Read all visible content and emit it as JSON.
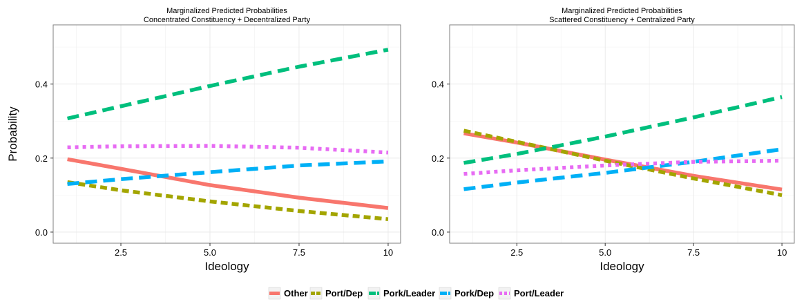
{
  "chart_data": [
    {
      "type": "line",
      "title": "Marginalized Predicted Probabilities",
      "subtitle": "Concentrated Constituency + Decentralized Party",
      "xlabel": "Ideology",
      "ylabel": "Probability",
      "xlim": [
        0.6,
        10.35
      ],
      "ylim": [
        -0.03,
        0.56
      ],
      "x_ticks": [
        2.5,
        5.0,
        7.5,
        10
      ],
      "x_tick_labels": [
        "2.5",
        "5.0",
        "7.5",
        "10"
      ],
      "y_ticks": [
        0.0,
        0.2,
        0.4
      ],
      "y_tick_labels": [
        "0.0",
        "0.2",
        "0.4"
      ],
      "grid": true,
      "series": [
        {
          "name": "Other",
          "color": "#F8766D",
          "style": "solid",
          "x": [
            1,
            2.5,
            5,
            7.5,
            10
          ],
          "values": [
            0.197,
            0.171,
            0.127,
            0.093,
            0.065
          ]
        },
        {
          "name": "Port/Dep",
          "color": "#A3A500",
          "style": "short-dash",
          "x": [
            1,
            2.5,
            5,
            7.5,
            10
          ],
          "values": [
            0.135,
            0.113,
            0.083,
            0.057,
            0.035
          ]
        },
        {
          "name": "Pork/Leader",
          "color": "#00BF7D",
          "style": "long-dash",
          "x": [
            1,
            2.5,
            5,
            7.5,
            10
          ],
          "values": [
            0.307,
            0.34,
            0.395,
            0.447,
            0.493
          ]
        },
        {
          "name": "Pork/Dep",
          "color": "#00B0F6",
          "style": "long-dash",
          "x": [
            1,
            2.5,
            5,
            7.5,
            10
          ],
          "values": [
            0.13,
            0.143,
            0.162,
            0.18,
            0.191
          ]
        },
        {
          "name": "Port/Leader",
          "color": "#E76BF3",
          "style": "dotted",
          "x": [
            1,
            2.5,
            5,
            7.5,
            10
          ],
          "values": [
            0.229,
            0.232,
            0.233,
            0.228,
            0.215
          ]
        }
      ]
    },
    {
      "type": "line",
      "title": "Marginalized Predicted Probabilities",
      "subtitle": "Scattered Constituency + Centralized Party",
      "xlabel": "Ideology",
      "ylabel": "",
      "xlim": [
        0.6,
        10.35
      ],
      "ylim": [
        -0.03,
        0.56
      ],
      "x_ticks": [
        2.5,
        5.0,
        7.5,
        10
      ],
      "x_tick_labels": [
        "2.5",
        "5.0",
        "7.5",
        "10"
      ],
      "y_ticks": [
        0.0,
        0.2,
        0.4
      ],
      "y_tick_labels": [
        "0.0",
        "0.2",
        "0.4"
      ],
      "grid": true,
      "series": [
        {
          "name": "Other",
          "color": "#F8766D",
          "style": "solid",
          "x": [
            1,
            2.5,
            5,
            7.5,
            10
          ],
          "values": [
            0.267,
            0.242,
            0.196,
            0.152,
            0.115
          ]
        },
        {
          "name": "Port/Dep",
          "color": "#A3A500",
          "style": "short-dash",
          "x": [
            1,
            2.5,
            5,
            7.5,
            10
          ],
          "values": [
            0.274,
            0.244,
            0.193,
            0.145,
            0.1
          ]
        },
        {
          "name": "Pork/Leader",
          "color": "#00BF7D",
          "style": "long-dash",
          "x": [
            1,
            2.5,
            5,
            7.5,
            10
          ],
          "values": [
            0.187,
            0.211,
            0.258,
            0.31,
            0.365
          ]
        },
        {
          "name": "Pork/Dep",
          "color": "#00B0F6",
          "style": "long-dash",
          "x": [
            1,
            2.5,
            5,
            7.5,
            10
          ],
          "values": [
            0.116,
            0.134,
            0.16,
            0.19,
            0.224
          ]
        },
        {
          "name": "Port/Leader",
          "color": "#E76BF3",
          "style": "dotted",
          "x": [
            1,
            2.5,
            5,
            7.5,
            10
          ],
          "values": [
            0.157,
            0.167,
            0.18,
            0.19,
            0.193
          ]
        }
      ]
    }
  ],
  "legend": {
    "placement": "bottom",
    "items": [
      {
        "label": "Other",
        "color": "#F8766D",
        "style": "solid"
      },
      {
        "label": "Port/Dep",
        "color": "#A3A500",
        "style": "short-dash"
      },
      {
        "label": "Pork/Leader",
        "color": "#00BF7D",
        "style": "long-dash"
      },
      {
        "label": "Pork/Dep",
        "color": "#00B0F6",
        "style": "long-dash"
      },
      {
        "label": "Port/Leader",
        "color": "#E76BF3",
        "style": "dotted"
      }
    ]
  }
}
